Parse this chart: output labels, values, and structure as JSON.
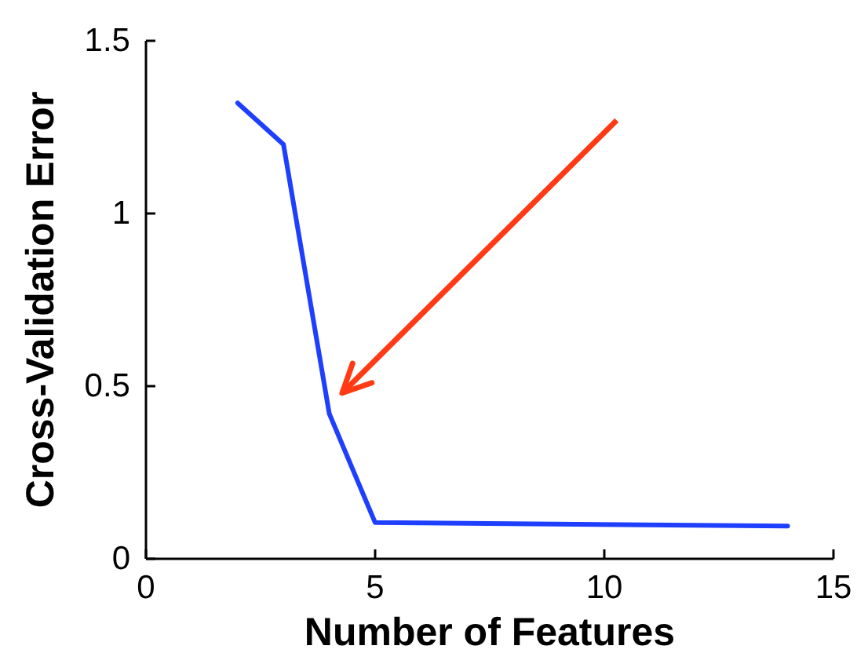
{
  "chart_data": {
    "type": "line",
    "xlabel": "Number of Features",
    "ylabel": "Cross-Validation Error",
    "x": [
      2,
      3,
      4,
      5,
      14
    ],
    "series": [
      {
        "color": "#1f3fff",
        "values": [
          1.32,
          1.2,
          0.42,
          0.105,
          0.095
        ]
      }
    ],
    "xlim": [
      0,
      15
    ],
    "xticks": [
      0,
      5,
      10,
      15
    ],
    "ylim": [
      0,
      1.5
    ],
    "yticks": [
      0,
      0.5,
      1,
      1.5
    ],
    "grid": false,
    "marker": "none",
    "line_style": "solid"
  }
}
